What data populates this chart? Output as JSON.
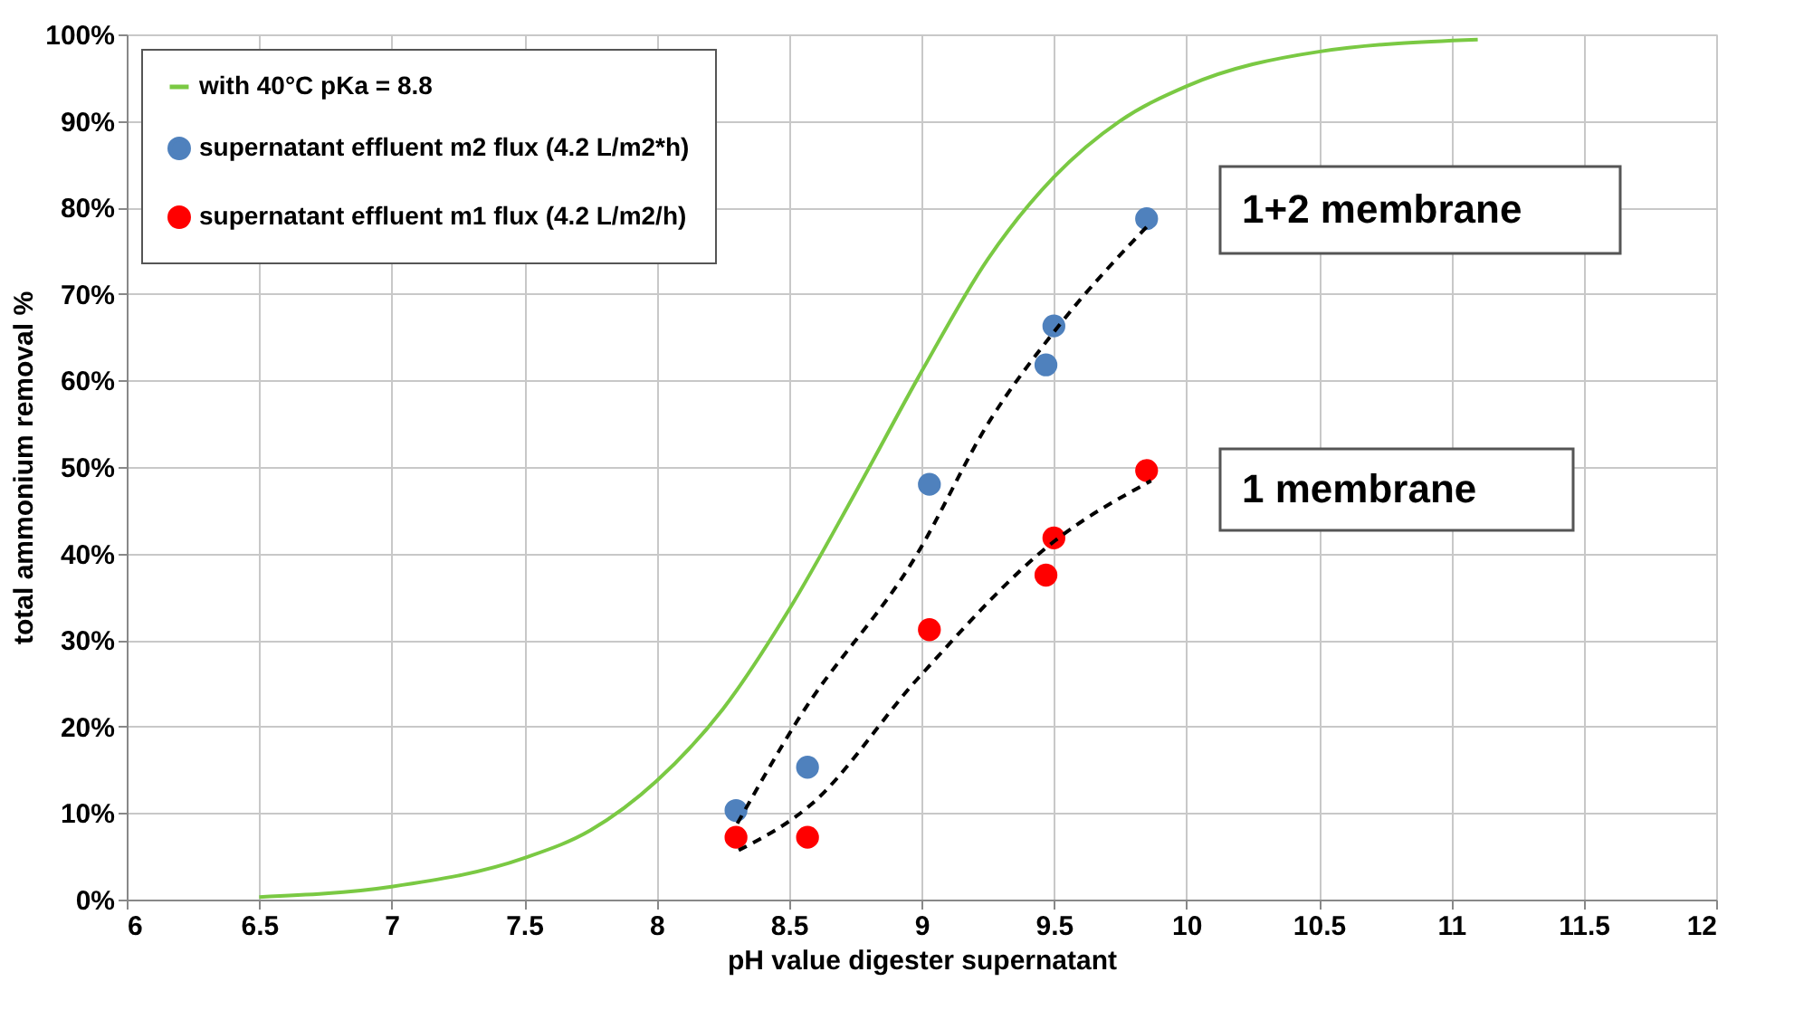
{
  "chart_data": {
    "type": "scatter",
    "xlabel": "pH value digester supernatant",
    "ylabel": "total ammonium removal  %",
    "xlim": [
      6,
      12
    ],
    "xticks": [
      6,
      6.5,
      7,
      7.5,
      8,
      8.5,
      9,
      9.5,
      10,
      10.5,
      11,
      11.5,
      12
    ],
    "ylim": [
      0,
      100
    ],
    "yticks": [
      {
        "value": 0,
        "label": "0%"
      },
      {
        "value": 10,
        "label": "10%"
      },
      {
        "value": 20,
        "label": "20%"
      },
      {
        "value": 30,
        "label": "30%"
      },
      {
        "value": 40,
        "label": "40%"
      },
      {
        "value": 50,
        "label": "50%"
      },
      {
        "value": 60,
        "label": "60%"
      },
      {
        "value": 70,
        "label": "70%"
      },
      {
        "value": 80,
        "label": "80%"
      },
      {
        "value": 90,
        "label": "90%"
      },
      {
        "value": 100,
        "label": "100%"
      }
    ],
    "grid": true,
    "legend": "top left",
    "annotations": [
      "1+2 membrane",
      "1 membrane"
    ],
    "series": [
      {
        "name": "with 40°C pKa = 8.8",
        "type": "line",
        "color": "#7ac943",
        "marker": "none",
        "line_style": "solid",
        "x": [
          6.5,
          7,
          7.5,
          7.75,
          8,
          8.25,
          8.5,
          8.75,
          9,
          9.25,
          9.5,
          9.75,
          10,
          10.5,
          11.1
        ],
        "values": [
          0.3,
          1.5,
          4.8,
          8,
          13.7,
          22,
          33.5,
          47,
          61,
          74,
          83.5,
          90,
          94,
          98,
          99.4
        ]
      },
      {
        "name": "supernatant effluent m2 flux (4.2 L/m2*h)",
        "color": "#4f81bd",
        "marker": "circle",
        "x": [
          8.3,
          8.57,
          9.03,
          9.47,
          9.5,
          9.85
        ],
        "values": [
          10.3,
          15.3,
          48,
          61.8,
          66.3,
          78.7
        ]
      },
      {
        "name": "supernatant effluent m1 flux (4.2 L/m2/h)",
        "color": "#ff0000",
        "marker": "circle",
        "x": [
          8.3,
          8.57,
          9.03,
          9.47,
          9.5,
          9.85
        ],
        "values": [
          7.2,
          7.2,
          31.2,
          37.5,
          41.8,
          49.6
        ]
      },
      {
        "type": "line",
        "color": "#000000",
        "marker": "none",
        "line_style": "dashed",
        "x": [
          8.305,
          8.53,
          8.985,
          9.257,
          9.505,
          9.867
        ],
        "values": [
          8.8,
          20.6,
          40,
          55.3,
          65.8,
          78.3
        ]
      },
      {
        "type": "line",
        "color": "#000000",
        "marker": "none",
        "line_style": "dashed",
        "x": [
          8.31,
          8.58,
          8.985,
          9.505,
          9.867
        ],
        "values": [
          5.7,
          10.9,
          25.5,
          41.5,
          48.4
        ]
      }
    ]
  }
}
